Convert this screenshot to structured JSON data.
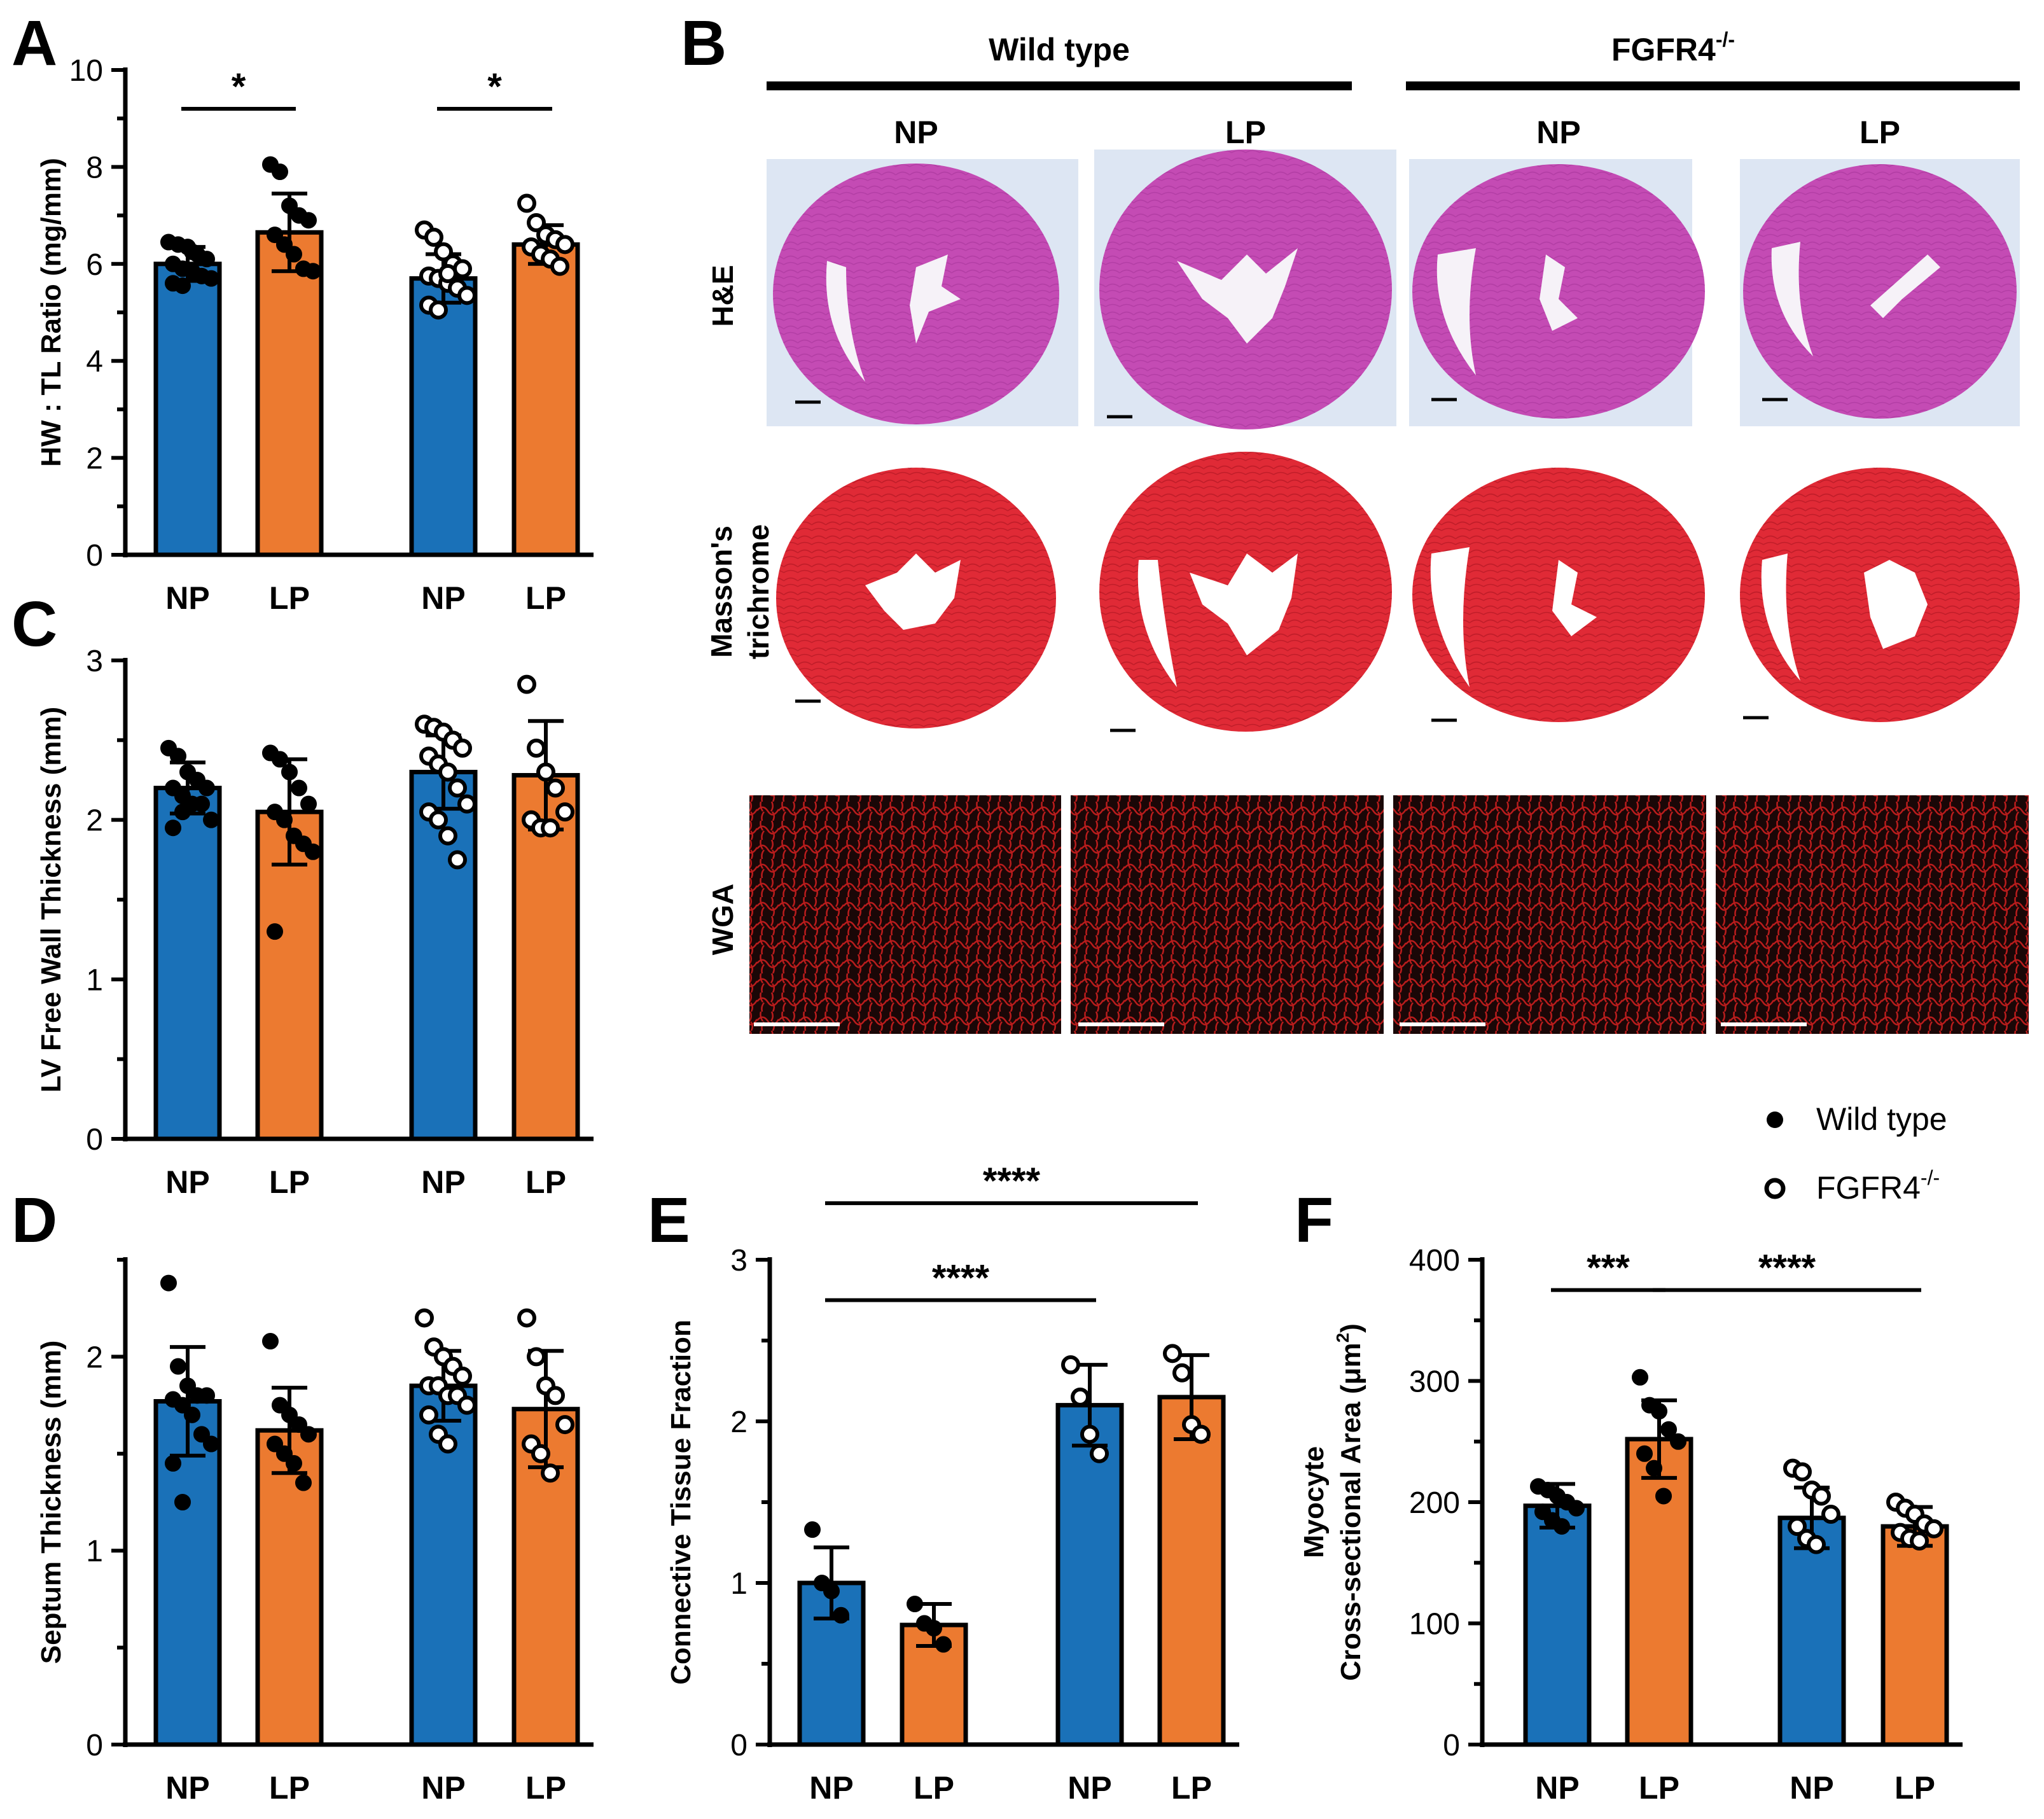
{
  "colors": {
    "np_bar": "#1A71B8",
    "lp_bar": "#EC7A30",
    "he_stain": "#C44BB4",
    "he_bg": "#DDE6F3",
    "masson_stain": "#E02A36",
    "wga_stain": "#D52020",
    "wga_bg": "#1A0707"
  },
  "legend": {
    "wild_type": "Wild type",
    "fgfr4": "FGFR4",
    "fgfr4_sup": "-/-"
  },
  "panel_b": {
    "letter": "B",
    "group_wt": "Wild type",
    "group_ko": "FGFR4",
    "group_ko_sup": "-/-",
    "col_labels": [
      "NP",
      "LP",
      "NP",
      "LP"
    ],
    "row_he": "H&E",
    "row_masson_1": "Masson's",
    "row_masson_2": "trichrome",
    "row_wga": "WGA"
  },
  "chart_data": [
    {
      "panel": "A",
      "type": "bar",
      "categories": [
        "NP",
        "LP",
        "NP",
        "LP"
      ],
      "genotype": [
        "Wild type",
        "Wild type",
        "FGFR4-/-",
        "FGFR4-/-"
      ],
      "ylabel": "HW : TL Ratio (mg/mm)",
      "ylim": [
        0,
        10
      ],
      "ytick_labels": [
        "0",
        "2",
        "4",
        "6",
        "8",
        "10"
      ],
      "ytick_values": [
        0,
        2,
        4,
        6,
        8,
        10
      ],
      "means": [
        6.0,
        6.65,
        5.7,
        6.4
      ],
      "sd": [
        0.35,
        0.8,
        0.5,
        0.4
      ],
      "points": [
        [
          6.45,
          6.4,
          6.35,
          6.2,
          6.1,
          6.0,
          5.9,
          5.85,
          5.75,
          5.7,
          5.6,
          5.55,
          6.25
        ],
        [
          8.05,
          7.9,
          7.2,
          7.0,
          6.9,
          6.6,
          6.4,
          6.2,
          5.9,
          5.85
        ],
        [
          6.7,
          6.55,
          6.25,
          6.0,
          5.9,
          5.75,
          5.7,
          5.6,
          5.5,
          5.35,
          5.15,
          5.05,
          5.8
        ],
        [
          7.25,
          6.85,
          6.6,
          6.5,
          6.4,
          6.35,
          6.2,
          6.1,
          5.95
        ]
      ],
      "significance": [
        {
          "from": 0,
          "to": 1,
          "y": 9.2,
          "label": "*"
        },
        {
          "from": 2,
          "to": 3,
          "y": 9.2,
          "label": "*"
        }
      ]
    },
    {
      "panel": "C",
      "type": "bar",
      "categories": [
        "NP",
        "LP",
        "NP",
        "LP"
      ],
      "genotype": [
        "Wild type",
        "Wild type",
        "FGFR4-/-",
        "FGFR4-/-"
      ],
      "ylabel": "LV Free Wall Thickness (mm)",
      "ylim": [
        0,
        3
      ],
      "ytick_labels": [
        "0",
        "1",
        "2",
        "3"
      ],
      "ytick_values": [
        0,
        1,
        2,
        3
      ],
      "means": [
        2.2,
        2.05,
        2.3,
        2.28
      ],
      "sd": [
        0.16,
        0.33,
        0.23,
        0.34
      ],
      "points": [
        [
          2.45,
          2.4,
          2.3,
          2.25,
          2.2,
          2.2,
          2.15,
          2.1,
          2.1,
          2.0,
          1.95,
          2.05
        ],
        [
          2.42,
          2.38,
          2.3,
          2.2,
          2.1,
          2.05,
          2.0,
          1.9,
          1.85,
          1.8,
          1.3
        ],
        [
          2.6,
          2.58,
          2.55,
          2.5,
          2.45,
          2.4,
          2.35,
          2.3,
          2.2,
          2.1,
          2.05,
          2.0,
          1.9,
          1.75
        ],
        [
          2.85,
          2.45,
          2.3,
          2.2,
          2.05,
          2.0,
          1.95,
          1.95
        ]
      ],
      "significance": []
    },
    {
      "panel": "D",
      "type": "bar",
      "categories": [
        "NP",
        "LP",
        "NP",
        "LP"
      ],
      "genotype": [
        "Wild type",
        "Wild type",
        "FGFR4-/-",
        "FGFR4-/-"
      ],
      "ylabel": "Septum Thickness (mm)",
      "ylim": [
        0,
        2.5
      ],
      "ytick_labels": [
        "0",
        "1",
        "2"
      ],
      "ytick_values": [
        0,
        1,
        2
      ],
      "means": [
        1.77,
        1.62,
        1.85,
        1.73
      ],
      "sd": [
        0.28,
        0.22,
        0.18,
        0.3
      ],
      "points": [
        [
          2.38,
          1.95,
          1.85,
          1.8,
          1.8,
          1.78,
          1.75,
          1.7,
          1.6,
          1.55,
          1.45,
          1.25
        ],
        [
          2.08,
          1.75,
          1.7,
          1.65,
          1.6,
          1.55,
          1.5,
          1.45,
          1.35
        ],
        [
          2.2,
          2.05,
          2.0,
          1.95,
          1.9,
          1.85,
          1.85,
          1.8,
          1.8,
          1.75,
          1.7,
          1.6,
          1.55
        ],
        [
          2.2,
          2.0,
          1.85,
          1.8,
          1.65,
          1.55,
          1.5,
          1.4
        ]
      ],
      "significance": []
    },
    {
      "panel": "E",
      "type": "bar",
      "categories": [
        "NP",
        "LP",
        "NP",
        "LP"
      ],
      "genotype": [
        "Wild type",
        "Wild type",
        "FGFR4-/-",
        "FGFR4-/-"
      ],
      "ylabel": "Connective Tissue Fraction",
      "ylim": [
        0,
        3
      ],
      "ytick_labels": [
        "0",
        "1",
        "2",
        "3"
      ],
      "ytick_values": [
        0,
        1,
        2,
        3
      ],
      "means": [
        1.0,
        0.74,
        2.1,
        2.15
      ],
      "sd": [
        0.22,
        0.13,
        0.25,
        0.26
      ],
      "points": [
        [
          1.33,
          1.0,
          0.95,
          0.8
        ],
        [
          0.87,
          0.75,
          0.72,
          0.62
        ],
        [
          2.35,
          2.15,
          1.92,
          1.8
        ],
        [
          2.42,
          2.3,
          1.98,
          1.92
        ]
      ],
      "significance": [
        {
          "from": 0,
          "to": 2,
          "y": 2.75,
          "label": "****"
        },
        {
          "from": 0,
          "to": 3,
          "y": 3.35,
          "label": "****"
        }
      ]
    },
    {
      "panel": "F",
      "type": "bar",
      "categories": [
        "NP",
        "LP",
        "NP",
        "LP"
      ],
      "genotype": [
        "Wild type",
        "Wild type",
        "FGFR4-/-",
        "FGFR4-/-"
      ],
      "ylabel_line1": "Myocyte",
      "ylabel_line2": "Cross-sectional Area (μm",
      "ylabel_sup": "2",
      "ylabel_close": ")",
      "ylim": [
        0,
        400
      ],
      "ytick_labels": [
        "0",
        "100",
        "200",
        "300",
        "400"
      ],
      "ytick_values": [
        0,
        100,
        200,
        300,
        400
      ],
      "means": [
        197,
        252,
        187,
        180
      ],
      "sd": [
        18,
        32,
        25,
        16
      ],
      "points": [
        [
          213,
          210,
          205,
          200,
          195,
          192,
          185,
          180
        ],
        [
          303,
          280,
          275,
          260,
          250,
          240,
          228,
          205
        ],
        [
          228,
          225,
          210,
          205,
          190,
          180,
          170,
          165
        ],
        [
          200,
          195,
          190,
          182,
          178,
          175,
          170,
          168
        ]
      ],
      "significance": [
        {
          "from": 0,
          "to": 1,
          "y": 375,
          "label": "***"
        },
        {
          "from": 1,
          "to": 3,
          "y": 375,
          "label": "****"
        }
      ]
    }
  ]
}
